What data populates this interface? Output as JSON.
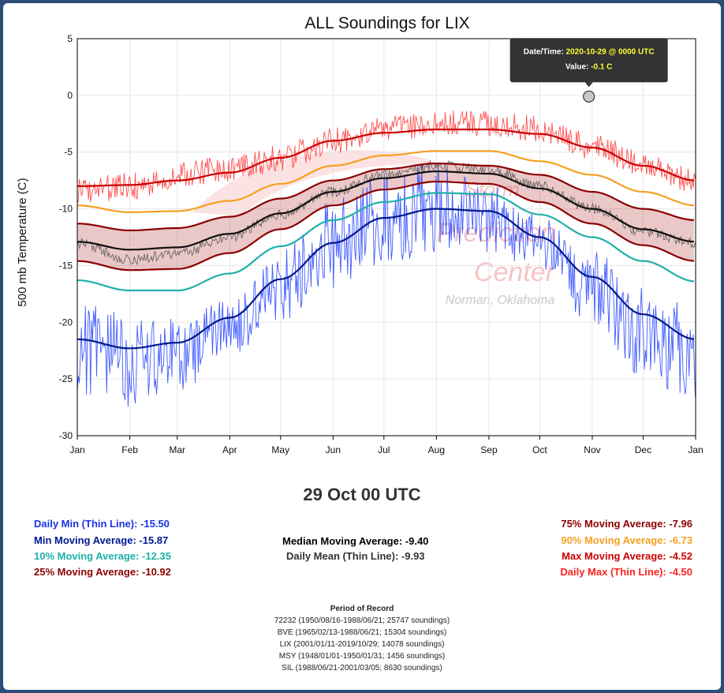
{
  "chart_data": {
    "type": "line",
    "title": "ALL Soundings for LIX",
    "ylabel": "500 mb Temperature (C)",
    "xlabel": "",
    "ylim": [
      -30,
      5
    ],
    "yticks": [
      5,
      0,
      -5,
      -10,
      -15,
      -20,
      -25,
      -30
    ],
    "xticks": [
      "Jan",
      "Feb",
      "Mar",
      "Apr",
      "May",
      "Jun",
      "Jul",
      "Aug",
      "Sep",
      "Oct",
      "Nov",
      "Dec",
      "Jan"
    ],
    "x_days": [
      0,
      31,
      59,
      90,
      120,
      151,
      181,
      212,
      243,
      273,
      304,
      334,
      365
    ],
    "grid": true,
    "series": [
      {
        "name": "Daily Max (Thin Line)",
        "color": "#ff3333",
        "x": [
          0,
          31,
          59,
          90,
          120,
          151,
          181,
          212,
          243,
          273,
          304,
          334,
          365
        ],
        "values": [
          -8.5,
          -8.0,
          -7.0,
          -6.5,
          -5.5,
          -4.0,
          -3.0,
          -2.5,
          -2.5,
          -3.0,
          -4.5,
          -6.0,
          -7.5
        ]
      },
      {
        "name": "Max Moving Average",
        "color": "#cc0000",
        "x": [
          0,
          31,
          59,
          90,
          120,
          151,
          181,
          212,
          243,
          273,
          304,
          334,
          365
        ],
        "values": [
          -8.0,
          -7.9,
          -7.5,
          -6.8,
          -5.5,
          -4.0,
          -3.3,
          -3.0,
          -3.0,
          -3.4,
          -4.6,
          -6.2,
          -7.5
        ]
      },
      {
        "name": "90% Moving Average",
        "color": "#f5a020",
        "x": [
          0,
          31,
          59,
          90,
          120,
          151,
          181,
          212,
          243,
          273,
          304,
          334,
          365
        ],
        "values": [
          -9.7,
          -10.3,
          -10.2,
          -9.3,
          -7.8,
          -6.2,
          -5.3,
          -4.9,
          -4.9,
          -5.8,
          -7.0,
          -8.5,
          -9.7
        ]
      },
      {
        "name": "75% Moving Average",
        "color": "#8b0000",
        "x": [
          0,
          31,
          59,
          90,
          120,
          151,
          181,
          212,
          243,
          273,
          304,
          334,
          365
        ],
        "values": [
          -11.3,
          -11.9,
          -11.7,
          -10.7,
          -9.1,
          -7.5,
          -6.5,
          -6.0,
          -6.2,
          -7.0,
          -8.5,
          -10.0,
          -11.0
        ]
      },
      {
        "name": "Daily Mean (Thin Line)",
        "color": "#555555",
        "x": [
          0,
          31,
          59,
          90,
          120,
          151,
          181,
          212,
          243,
          273,
          304,
          334,
          365
        ],
        "values": [
          -13.0,
          -14.5,
          -14.0,
          -12.5,
          -10.5,
          -8.5,
          -7.0,
          -6.2,
          -6.5,
          -8.0,
          -10.0,
          -12.0,
          -13.0
        ]
      },
      {
        "name": "Median Moving Average",
        "color": "#111111",
        "x": [
          0,
          31,
          59,
          90,
          120,
          151,
          181,
          212,
          243,
          273,
          304,
          334,
          365
        ],
        "values": [
          -12.9,
          -13.6,
          -13.4,
          -12.2,
          -10.4,
          -8.5,
          -7.3,
          -6.7,
          -6.9,
          -8.2,
          -10.0,
          -11.8,
          -12.9
        ]
      },
      {
        "name": "25% Moving Average",
        "color": "#8b0000",
        "x": [
          0,
          31,
          59,
          90,
          120,
          151,
          181,
          212,
          243,
          273,
          304,
          334,
          365
        ],
        "values": [
          -14.6,
          -15.4,
          -15.3,
          -13.9,
          -11.8,
          -9.7,
          -8.3,
          -7.6,
          -7.8,
          -9.4,
          -11.3,
          -13.2,
          -14.6
        ]
      },
      {
        "name": "10% Moving Average",
        "color": "#20b0a8",
        "x": [
          0,
          31,
          59,
          90,
          120,
          151,
          181,
          212,
          243,
          273,
          304,
          334,
          365
        ],
        "values": [
          -16.3,
          -17.2,
          -17.2,
          -15.7,
          -13.3,
          -11.0,
          -9.4,
          -8.6,
          -8.7,
          -10.5,
          -12.5,
          -14.6,
          -16.4
        ]
      },
      {
        "name": "Min Moving Average",
        "color": "#00188f",
        "x": [
          0,
          31,
          59,
          90,
          120,
          151,
          181,
          212,
          243,
          273,
          304,
          334,
          365
        ],
        "values": [
          -21.5,
          -22.3,
          -21.8,
          -19.6,
          -16.2,
          -13.0,
          -10.8,
          -10.0,
          -10.2,
          -12.5,
          -16.0,
          -19.3,
          -21.5
        ]
      },
      {
        "name": "Daily Min (Thin Line)",
        "color": "#2040ff",
        "x": [
          0,
          31,
          59,
          90,
          120,
          151,
          181,
          212,
          243,
          273,
          304,
          334,
          365
        ],
        "values": [
          -22.0,
          -23.5,
          -23.0,
          -20.5,
          -17.0,
          -13.0,
          -11.0,
          -10.0,
          -10.5,
          -13.0,
          -17.0,
          -21.0,
          -22.5
        ]
      }
    ],
    "tooltip": {
      "date_label": "Date/Time:",
      "date_value": "2020-10-29 @ 0000 UTC",
      "value_label": "Value:",
      "value_value": "-0.1 C",
      "x": 302,
      "y": -0.1
    },
    "watermark": {
      "line1": "Storm",
      "line2": "Prediction",
      "line3": "Center",
      "line4": "Norman, Oklahoma"
    }
  },
  "selected_time": "29 Oct 00 UTC",
  "stats": {
    "daily_min": {
      "label": "Daily Min (Thin Line): -15.50",
      "color": "#1a33e6"
    },
    "min_ma": {
      "label": "Min Moving Average: -15.87",
      "color": "#00188f"
    },
    "p10_ma": {
      "label": "10% Moving Average: -12.35",
      "color": "#1fb0a8"
    },
    "p25_ma": {
      "label": "25% Moving Average: -10.92",
      "color": "#8b0000"
    },
    "median_ma": {
      "label": "Median Moving Average: -9.40",
      "color": "#000000"
    },
    "daily_mean": {
      "label": "Daily Mean (Thin Line): -9.93",
      "color": "#333333"
    },
    "p75_ma": {
      "label": "75% Moving Average: -7.96",
      "color": "#8b0000"
    },
    "p90_ma": {
      "label": "90% Moving Average: -6.73",
      "color": "#f5a020"
    },
    "max_ma": {
      "label": "Max Moving Average: -4.52",
      "color": "#cc0000"
    },
    "daily_max": {
      "label": "Daily Max (Thin Line): -4.50",
      "color": "#ff2020"
    }
  },
  "period_of_record": {
    "title": "Period of Record",
    "lines": [
      "72232 (1950/08/16-1988/06/21; 25747 soundings)",
      "BVE (1965/02/13-1988/06/21; 15304 soundings)",
      "LIX (2001/01/11-2019/10/29; 14078 soundings)",
      "MSY (1948/01/01-1950/01/31; 1456 soundings)",
      "SIL (1988/06/21-2001/03/05; 8630 soundings)"
    ]
  }
}
